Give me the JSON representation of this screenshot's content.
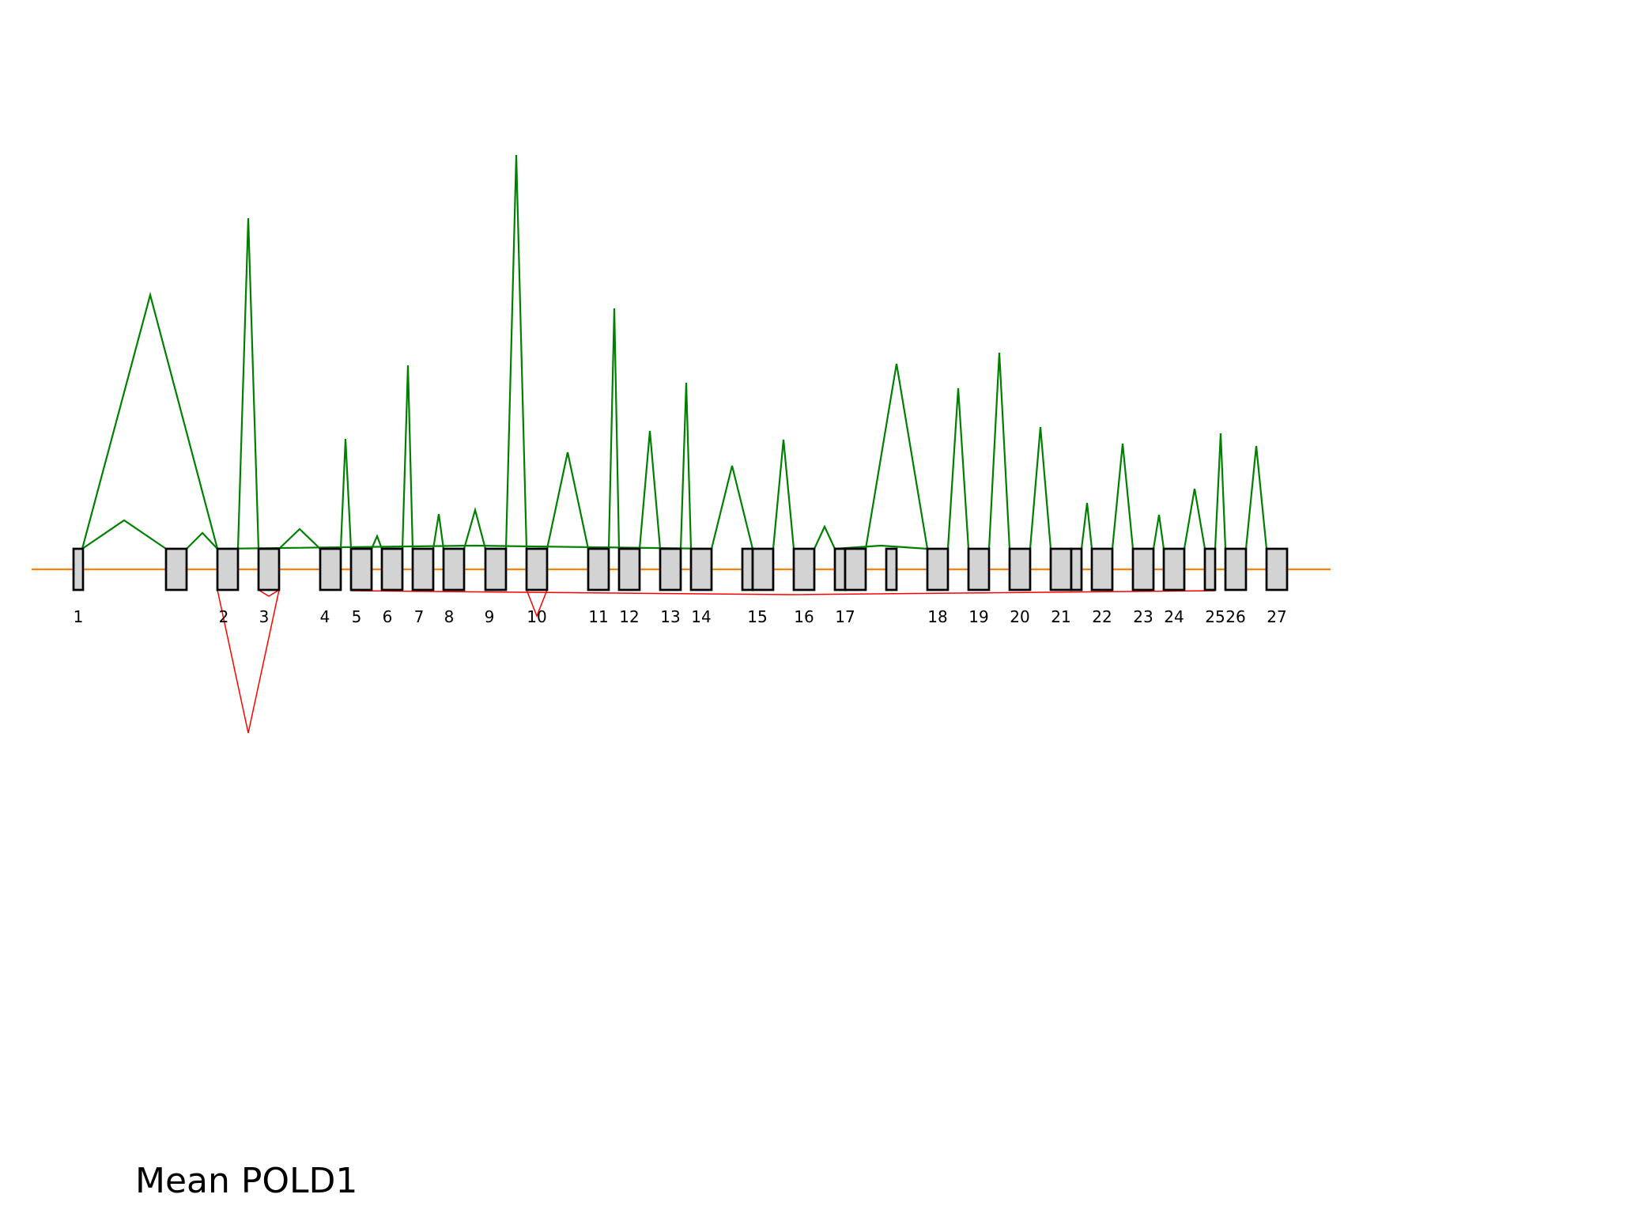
{
  "title": "Mean POLD1",
  "colors": {
    "background": "#ffffff",
    "transcript_line": "#ff7f0e",
    "junction_up": "#008000",
    "junction_down": "#ff0000",
    "exon_fill": "#d3d3d3",
    "exon_stroke": "#000000"
  },
  "exons": [
    {
      "id": "e1",
      "label": "1"
    },
    {
      "id": "e1b",
      "label": ""
    },
    {
      "id": "e2",
      "label": "2"
    },
    {
      "id": "e3",
      "label": "3"
    },
    {
      "id": "e4",
      "label": "4"
    },
    {
      "id": "e5",
      "label": "5"
    },
    {
      "id": "e6",
      "label": "6"
    },
    {
      "id": "e7",
      "label": "7"
    },
    {
      "id": "e8",
      "label": "8"
    },
    {
      "id": "e9",
      "label": "9"
    },
    {
      "id": "e10",
      "label": "10"
    },
    {
      "id": "e11",
      "label": "11"
    },
    {
      "id": "e12",
      "label": "12"
    },
    {
      "id": "e13",
      "label": "13"
    },
    {
      "id": "e14",
      "label": "14"
    },
    {
      "id": "e15a",
      "label": ""
    },
    {
      "id": "e15",
      "label": "15"
    },
    {
      "id": "e16",
      "label": "16"
    },
    {
      "id": "e17a",
      "label": ""
    },
    {
      "id": "e17",
      "label": "17"
    },
    {
      "id": "e17c",
      "label": ""
    },
    {
      "id": "e18",
      "label": "18"
    },
    {
      "id": "e19",
      "label": "19"
    },
    {
      "id": "e20",
      "label": "20"
    },
    {
      "id": "e21",
      "label": "21"
    },
    {
      "id": "e21b",
      "label": ""
    },
    {
      "id": "e22",
      "label": "22"
    },
    {
      "id": "e23",
      "label": "23"
    },
    {
      "id": "e24",
      "label": "24"
    },
    {
      "id": "e25",
      "label": "25"
    },
    {
      "id": "e26",
      "label": "26"
    },
    {
      "id": "e27",
      "label": "27"
    }
  ]
}
